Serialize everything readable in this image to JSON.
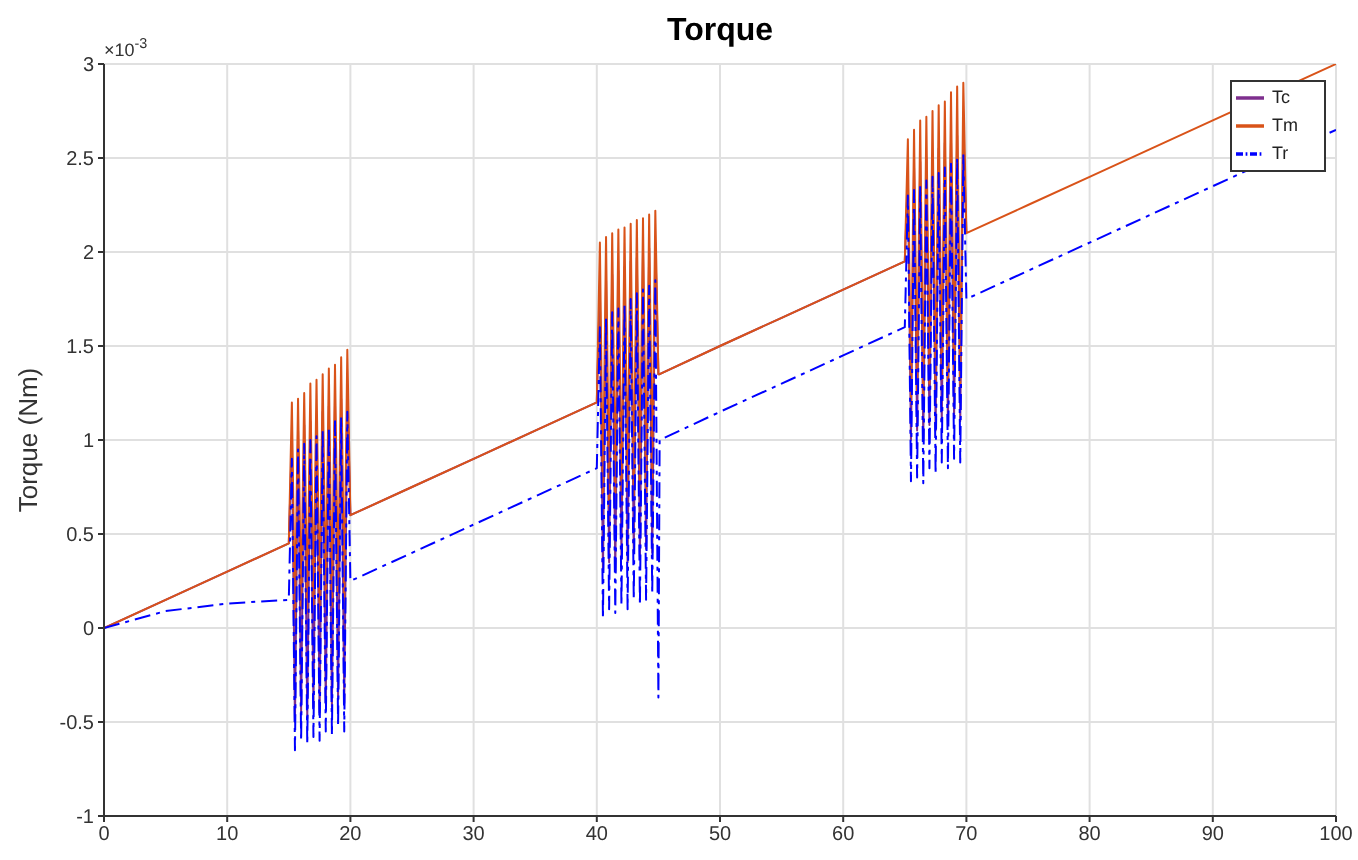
{
  "chart_data": {
    "type": "line",
    "title": "Torque",
    "ylabel": "Torque (Nm)",
    "annotations": [
      "×10$^{-3}$"
    ],
    "x": [
      0,
      5,
      10,
      15,
      15.25,
      15.5,
      15.75,
      16,
      16.25,
      16.5,
      16.75,
      17,
      17.25,
      17.5,
      17.75,
      18,
      18.25,
      18.5,
      18.75,
      19,
      19.25,
      19.5,
      19.75,
      20,
      25,
      30,
      35,
      40,
      40.25,
      40.5,
      40.75,
      41,
      41.25,
      41.5,
      41.75,
      42,
      42.25,
      42.5,
      42.75,
      43,
      43.25,
      43.5,
      43.75,
      44,
      44.25,
      44.5,
      44.75,
      45,
      45.1,
      50,
      55,
      60,
      65,
      65.25,
      65.5,
      65.75,
      66,
      66.25,
      66.5,
      66.75,
      67,
      67.25,
      67.5,
      67.75,
      68,
      68.25,
      68.5,
      68.75,
      69,
      69.25,
      69.5,
      69.75,
      70,
      75,
      80,
      85,
      90,
      100
    ],
    "series": [
      {
        "name": "Tc",
        "color": "#7e2f8e",
        "values": [
          0,
          0.15,
          0.3,
          0.45,
          1.0,
          -0.5,
          1.05,
          -0.45,
          1.08,
          -0.48,
          1.1,
          -0.42,
          1.12,
          -0.45,
          1.15,
          -0.4,
          1.18,
          -0.42,
          1.2,
          -0.38,
          1.22,
          -0.4,
          1.25,
          0.6,
          0.75,
          0.9,
          1.05,
          1.2,
          1.8,
          0.3,
          1.85,
          0.35,
          1.88,
          0.3,
          1.9,
          0.38,
          1.92,
          0.35,
          1.95,
          0.4,
          1.97,
          0.38,
          2.0,
          0.42,
          2.02,
          0.4,
          2.05,
          1.35,
          1.35,
          1.5,
          1.65,
          1.8,
          1.95,
          2.4,
          1.0,
          2.45,
          1.05,
          2.48,
          1.0,
          2.5,
          1.08,
          2.52,
          1.05,
          2.55,
          1.1,
          2.58,
          1.08,
          2.6,
          1.12,
          2.62,
          1.1,
          2.65,
          2.1,
          null,
          null,
          null,
          null,
          null
        ]
      },
      {
        "name": "Tm",
        "color": "#d95319",
        "values": [
          0,
          0.15,
          0.3,
          0.45,
          1.2,
          0.05,
          1.22,
          0.1,
          1.25,
          0.08,
          1.3,
          0.12,
          1.32,
          0.1,
          1.35,
          0.15,
          1.38,
          0.12,
          1.4,
          0.18,
          1.44,
          0.15,
          1.48,
          0.6,
          0.75,
          0.9,
          1.05,
          1.2,
          2.05,
          0.7,
          2.08,
          0.65,
          2.1,
          0.72,
          2.12,
          0.68,
          2.13,
          0.75,
          2.15,
          0.7,
          2.17,
          0.78,
          2.18,
          0.72,
          2.2,
          0.8,
          2.22,
          1.35,
          1.35,
          1.5,
          1.65,
          1.8,
          1.95,
          2.6,
          1.2,
          2.65,
          1.25,
          2.7,
          1.2,
          2.72,
          1.3,
          2.75,
          1.25,
          2.78,
          1.32,
          2.8,
          1.3,
          2.85,
          1.35,
          2.88,
          1.3,
          2.9,
          2.1,
          2.25,
          2.4,
          2.55,
          2.7,
          3.0
        ]
      },
      {
        "name": "Tr",
        "color": "#0000ff",
        "line_style": "dashed",
        "values": [
          0,
          0.09,
          0.13,
          0.15,
          0.9,
          -0.65,
          0.95,
          -0.6,
          0.98,
          -0.62,
          1.0,
          -0.58,
          1.02,
          -0.6,
          1.05,
          -0.55,
          1.07,
          -0.57,
          1.1,
          -0.52,
          1.12,
          -0.55,
          1.15,
          0.25,
          0.4,
          0.55,
          0.7,
          0.85,
          1.6,
          0.05,
          1.65,
          0.1,
          1.68,
          0.08,
          1.7,
          0.12,
          1.72,
          0.1,
          1.75,
          0.15,
          1.78,
          0.12,
          1.8,
          0.15,
          1.82,
          0.18,
          1.85,
          -0.37,
          1.0,
          1.15,
          1.3,
          1.45,
          1.6,
          2.3,
          0.78,
          2.33,
          0.8,
          2.35,
          0.77,
          2.38,
          0.85,
          2.4,
          0.82,
          2.42,
          0.88,
          2.45,
          0.85,
          2.47,
          0.9,
          2.5,
          0.88,
          2.52,
          1.75,
          1.9,
          2.05,
          2.2,
          2.35,
          2.65
        ]
      }
    ],
    "xlim": [
      0,
      100
    ],
    "xticks": [
      0,
      10,
      20,
      30,
      40,
      50,
      60,
      70,
      80,
      90,
      100
    ],
    "ylim": [
      -1,
      3
    ],
    "yticks": [
      -1,
      -0.5,
      0,
      0.5,
      1,
      1.5,
      2,
      2.5,
      3
    ],
    "grid": true,
    "legend": "top right",
    "marker": "none",
    "line_style": "solid"
  }
}
